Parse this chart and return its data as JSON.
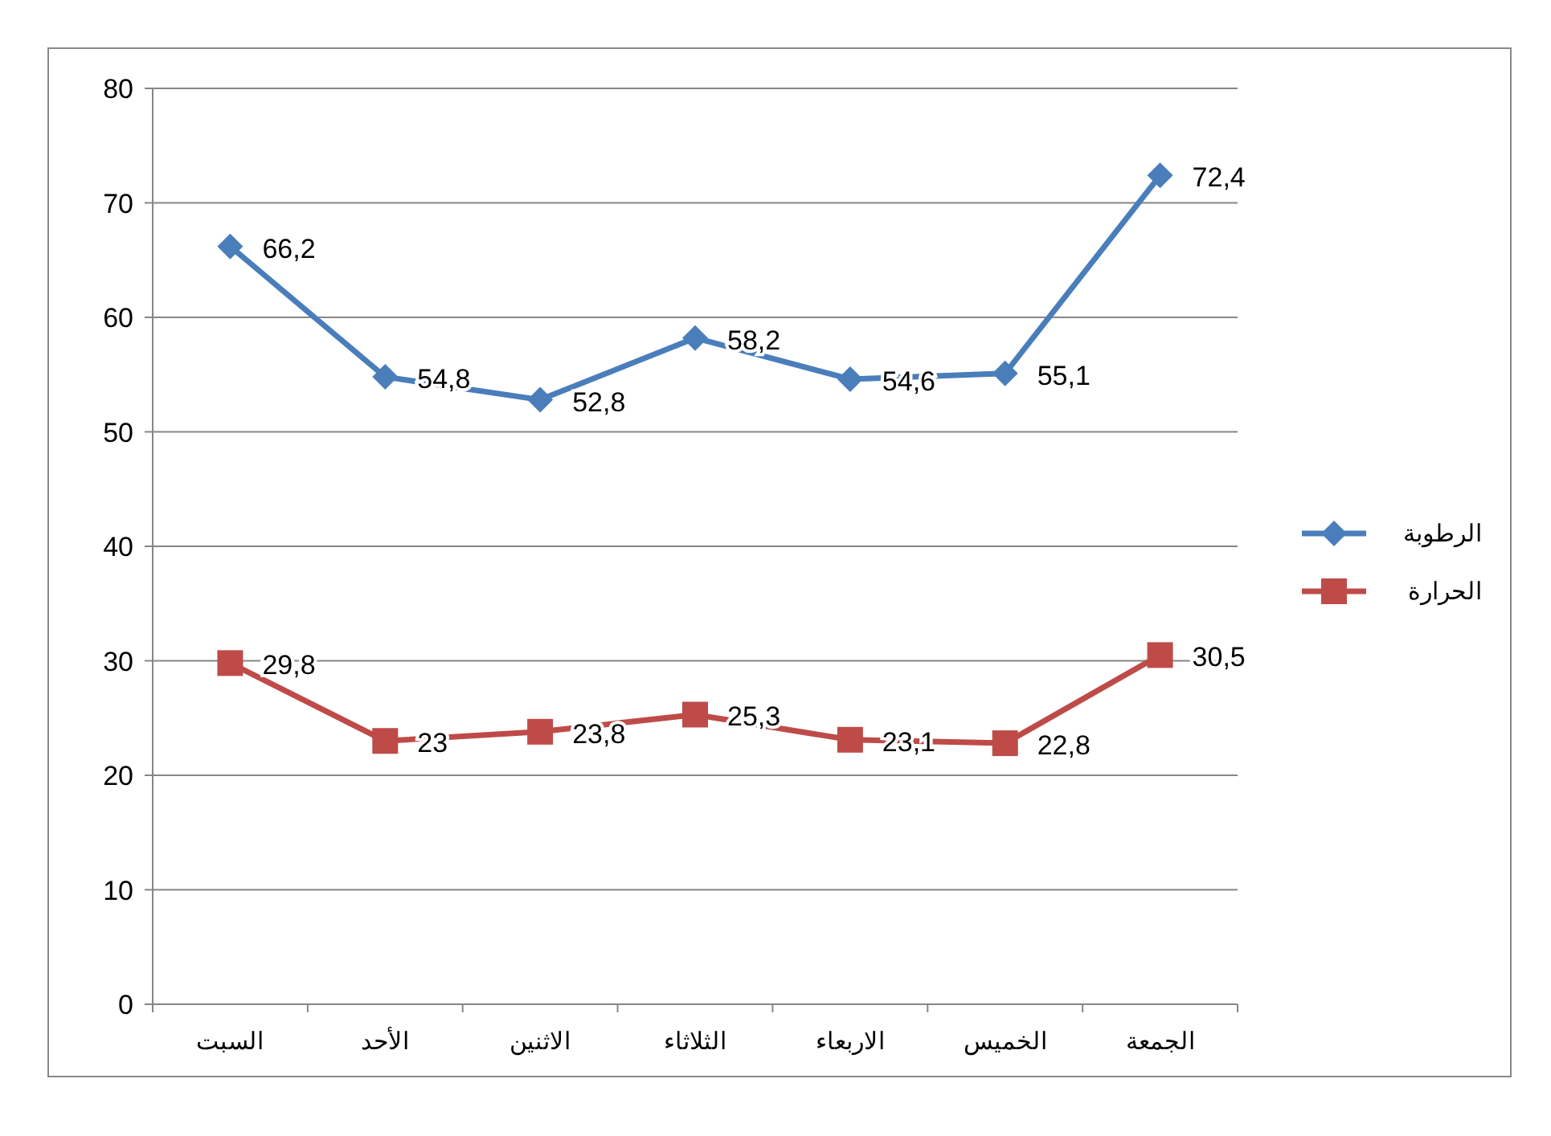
{
  "chart_data": {
    "type": "line",
    "categories": [
      "السبت",
      "الأحد",
      "الاثنين",
      "الثلاثاء",
      "الاربعاء",
      "الخميس",
      "الجمعة"
    ],
    "series": [
      {
        "name": "الرطوبة",
        "color": "#4a7ebb",
        "marker": "diamond",
        "values": [
          66.2,
          54.8,
          52.8,
          58.2,
          54.6,
          55.1,
          72.4
        ],
        "value_labels": [
          "66,2",
          "54,8",
          "52,8",
          "58,2",
          "54,6",
          "55,1",
          "72,4"
        ]
      },
      {
        "name": "الحرارة",
        "color": "#be4b48",
        "marker": "square",
        "values": [
          29.8,
          23,
          23.8,
          25.3,
          23.1,
          22.8,
          30.5
        ],
        "value_labels": [
          "29,8",
          "23",
          "23,8",
          "25,3",
          "23,1",
          "22,8",
          "30,5"
        ]
      }
    ],
    "ylim": [
      0,
      80
    ],
    "yticks": [
      0,
      10,
      20,
      30,
      40,
      50,
      60,
      70,
      80
    ],
    "grid": "y",
    "legend": "right",
    "line_style": "solid"
  }
}
